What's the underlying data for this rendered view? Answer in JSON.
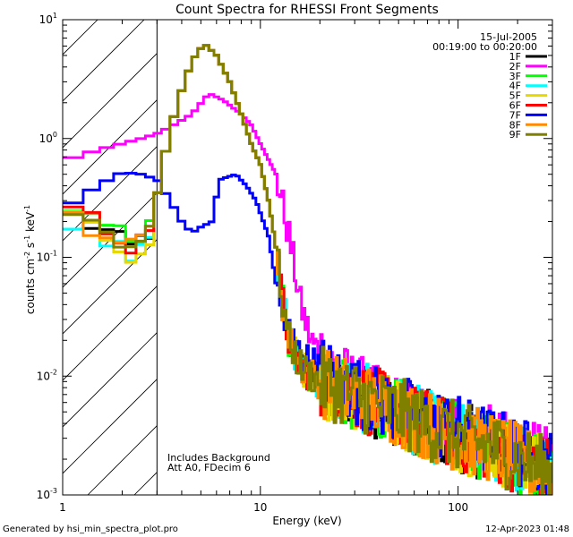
{
  "chart_data": {
    "type": "line",
    "title": "Count Spectra for RHESSI Front Segments",
    "xlabel": "Energy (keV)",
    "ylabel_parts": {
      "a": "counts cm",
      "b": "-2",
      "c": " s",
      "d": "-1",
      "e": " keV",
      "f": "-1"
    },
    "xscale": "log",
    "yscale": "log",
    "xlim": [
      1.0,
      300.0
    ],
    "ylim": [
      0.001,
      10.0
    ],
    "x_ticks": [
      {
        "v": 1,
        "label": "1"
      },
      {
        "v": 10,
        "label": "10"
      },
      {
        "v": 100,
        "label": "100"
      }
    ],
    "y_ticks": [
      {
        "v": 0.001,
        "base": "10",
        "exp": "-3"
      },
      {
        "v": 0.01,
        "base": "10",
        "exp": "-2"
      },
      {
        "v": 0.1,
        "base": "10",
        "exp": "-1"
      },
      {
        "v": 1,
        "base": "10",
        "exp": "0"
      },
      {
        "v": 10,
        "base": "10",
        "exp": "1"
      }
    ],
    "hatch_region_max_x": 3.0,
    "date": "15-Jul-2005",
    "time_range": "00:19:00 to 00:20:00",
    "annotations": [
      "Includes Background",
      "Att A0, FDecim 6"
    ],
    "legend_placement": "top-right",
    "series": [
      {
        "name": "1F",
        "color": "#000000",
        "offset": 0.0
      },
      {
        "name": "2F",
        "color": "#ff00ff",
        "offset": 0.0
      },
      {
        "name": "3F",
        "color": "#00ff00",
        "offset": 0.0
      },
      {
        "name": "4F",
        "color": "#00ffff",
        "offset": 0.0
      },
      {
        "name": "5F",
        "color": "#e6d800",
        "offset": 0.0
      },
      {
        "name": "6F",
        "color": "#ff0000",
        "offset": 0.0
      },
      {
        "name": "7F",
        "color": "#0000ff",
        "offset": 0.0
      },
      {
        "name": "8F",
        "color": "#ff8c00",
        "offset": 0.0
      },
      {
        "name": "9F",
        "color": "#808000",
        "offset": 0.0
      }
    ]
  },
  "footer": {
    "left": "Generated by hsi_min_spectra_plot.pro",
    "right": "12-Apr-2023 01:48"
  }
}
